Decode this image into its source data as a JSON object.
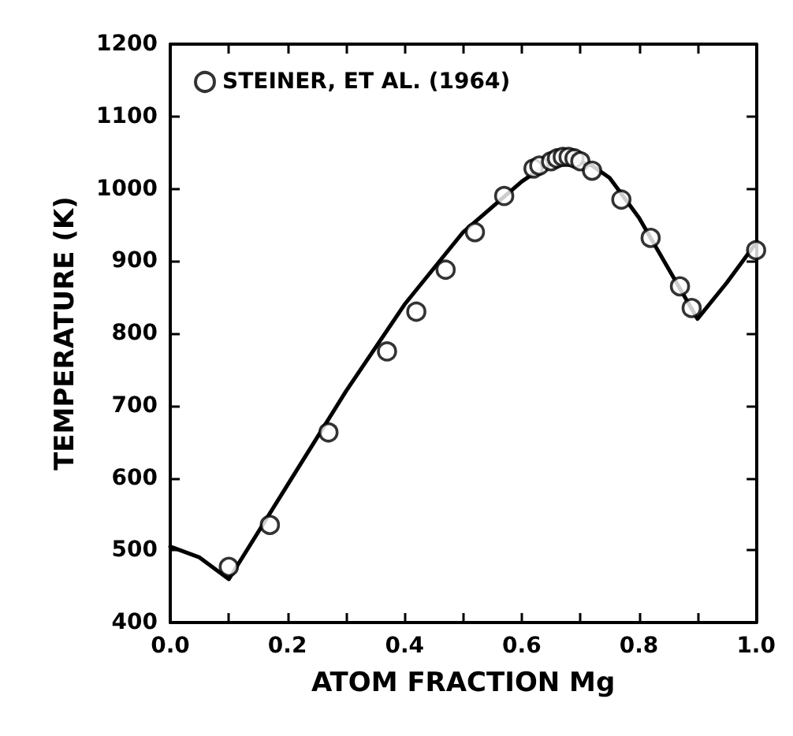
{
  "chart_data": {
    "type": "scatter",
    "xlabel": "ATOM FRACTION Mg",
    "ylabel": "TEMPERATURE (K)",
    "xlim": [
      0,
      1
    ],
    "ylim": [
      400,
      1200
    ],
    "xticks": [
      {
        "value": 0,
        "label": "0.0"
      },
      {
        "value": 0.1,
        "label": null
      },
      0.2,
      {
        "value": 0.3,
        "label": null
      },
      0.4,
      {
        "value": 0.5,
        "label": null
      },
      0.6,
      {
        "value": 0.7,
        "label": null
      },
      0.8,
      {
        "value": 0.9,
        "label": null
      },
      {
        "value": 1,
        "label": "1.0"
      }
    ],
    "yticks": [
      400,
      500,
      600,
      700,
      800,
      900,
      1000,
      1100,
      1200
    ],
    "grid": false,
    "legend": "top left",
    "series": [
      {
        "type": "line",
        "color": "#000000",
        "marker": "none",
        "line_style": "solid",
        "x": [
          0,
          0.05,
          0.1,
          0.2,
          0.3,
          0.4,
          0.5,
          0.6,
          0.64,
          0.68,
          0.72,
          0.75,
          0.8,
          0.85,
          0.9,
          0.95,
          1.0
        ],
        "values": [
          505,
          490,
          460,
          590,
          720,
          840,
          940,
          1010,
          1032,
          1042,
          1032,
          1015,
          960,
          890,
          820,
          870,
          925
        ]
      },
      {
        "name": "STEINER, ET AL. (1964)",
        "color": "#000000",
        "marker": "circle",
        "x": [
          0.1,
          0.17,
          0.27,
          0.37,
          0.42,
          0.47,
          0.52,
          0.57,
          0.62,
          0.63,
          0.65,
          0.66,
          0.67,
          0.68,
          0.69,
          0.7,
          0.72,
          0.77,
          0.82,
          0.87,
          0.89,
          1.0
        ],
        "values": [
          477,
          535,
          663,
          775,
          830,
          888,
          940,
          990,
          1028,
          1032,
          1038,
          1042,
          1044,
          1044,
          1042,
          1038,
          1025,
          985,
          932,
          865,
          835,
          915
        ]
      }
    ]
  }
}
